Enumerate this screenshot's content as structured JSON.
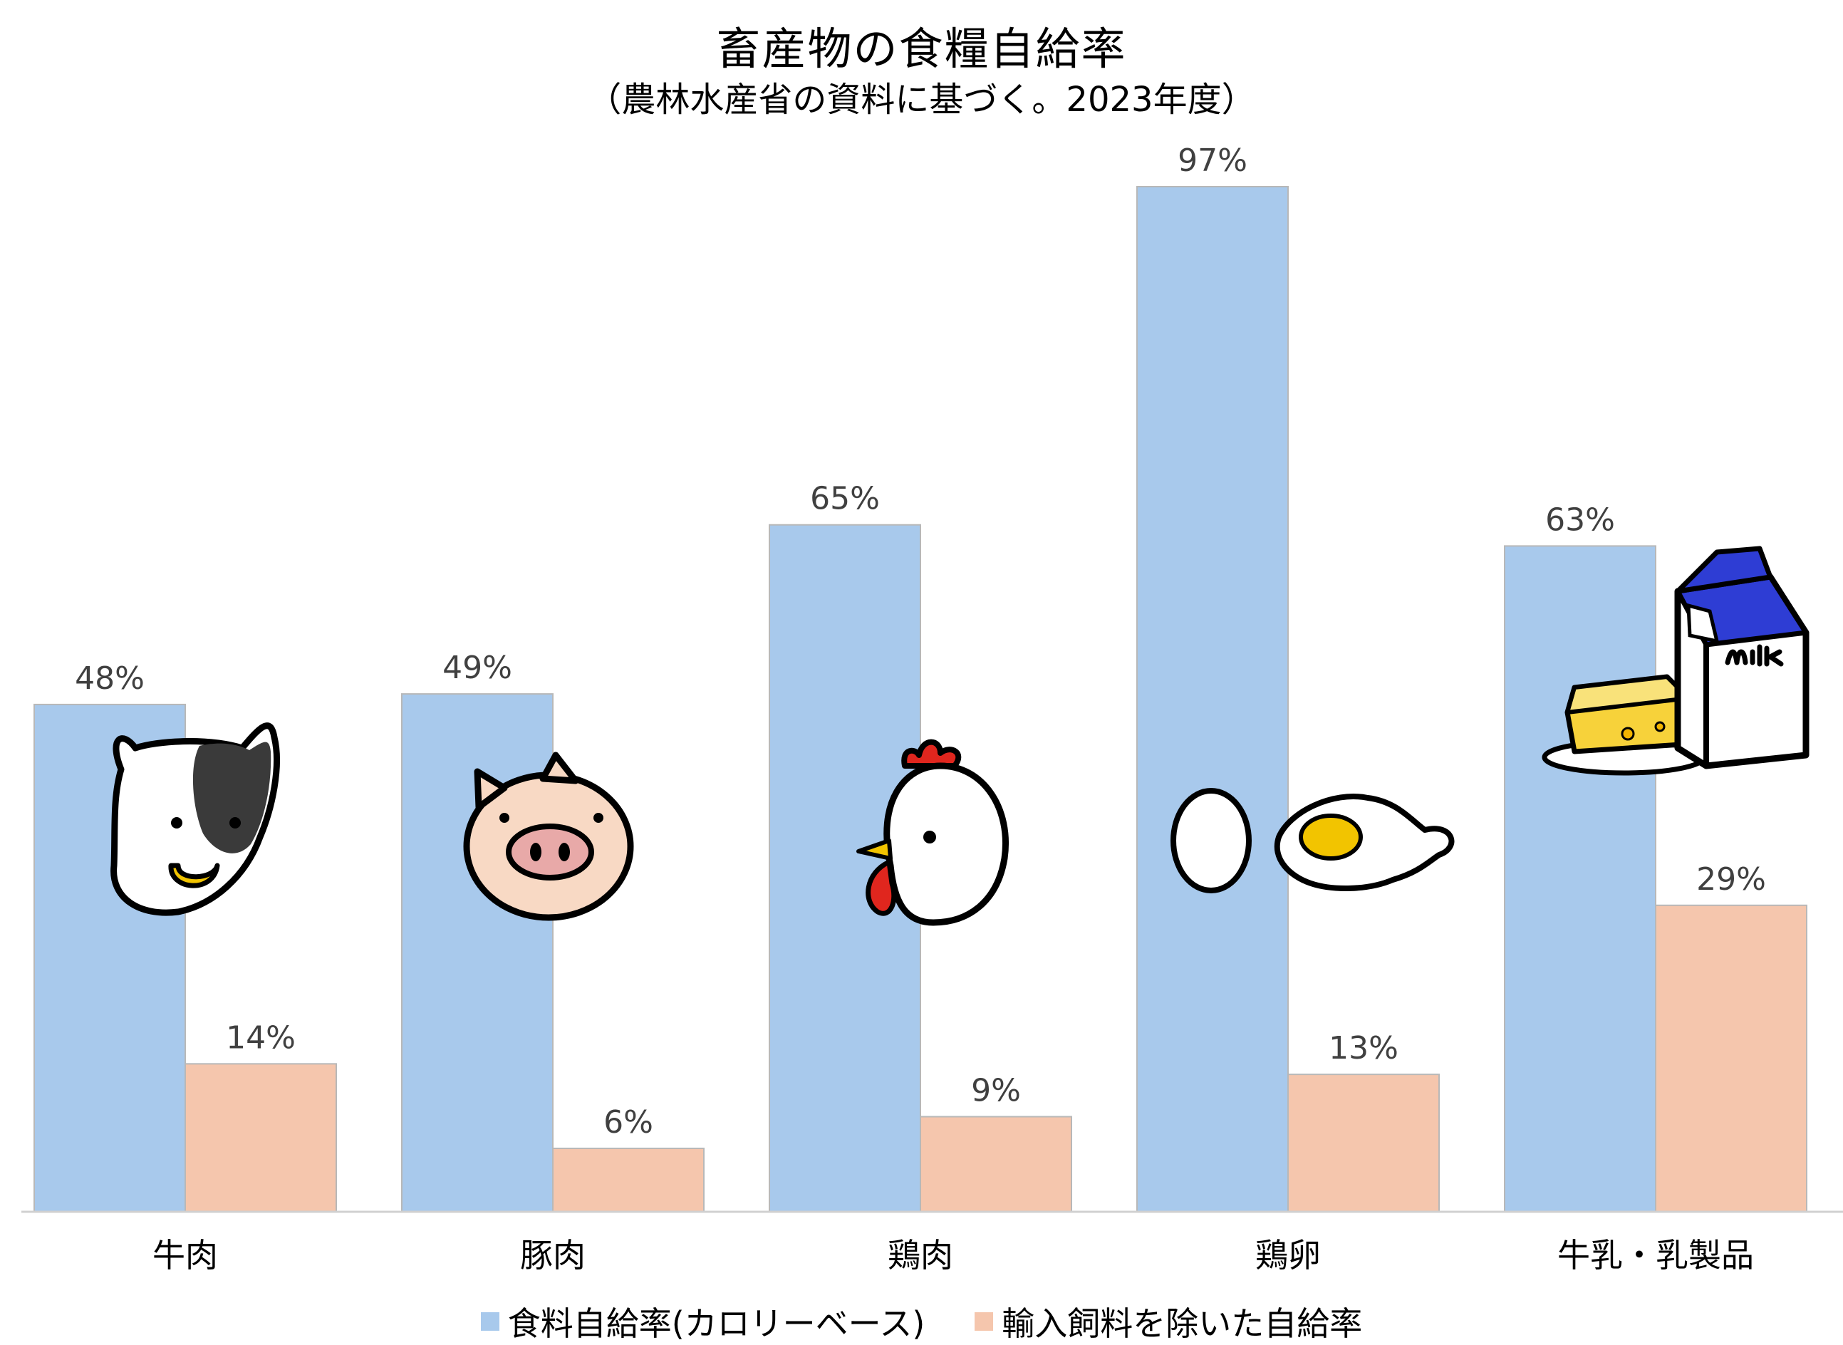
{
  "chart_data": {
    "type": "bar",
    "title": "畜産物の食糧自給率",
    "subtitle": "（農林水産省の資料に基づく。2023年度）",
    "categories": [
      "牛肉",
      "豚肉",
      "鶏肉",
      "鶏卵",
      "牛乳・乳製品"
    ],
    "series": [
      {
        "name": "食料自給率(カロリーベース)",
        "values": [
          48,
          49,
          65,
          97,
          63
        ],
        "labels": [
          "48%",
          "49%",
          "65%",
          "97%",
          "63%"
        ],
        "color": "#A8C9EC"
      },
      {
        "name": "輸入飼料を除いた自給率",
        "values": [
          14,
          6,
          9,
          13,
          29
        ],
        "labels": [
          "14%",
          "6%",
          "9%",
          "13%",
          "29%"
        ],
        "color": "#F5C6AD"
      }
    ],
    "ylim": [
      0,
      100
    ],
    "grid": false,
    "legend_position": "bottom",
    "illustrations": [
      "cow-icon",
      "pig-icon",
      "chicken-icon",
      "egg-icon",
      "milk-cheese-icon"
    ]
  }
}
